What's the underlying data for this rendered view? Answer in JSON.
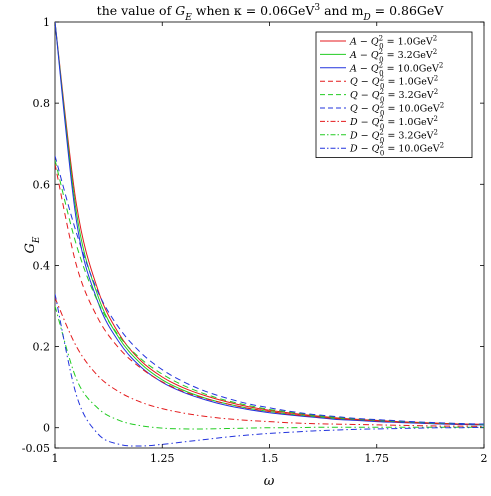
{
  "chart_data": {
    "type": "line",
    "title": "the value of G_E when κ = 0.06GeV³ and m_D = 0.86GeV",
    "title_parts": {
      "prefix": "the value of ",
      "symbol": "G",
      "symbol_sub": "E",
      "middle": " when κ = 0.06GeV",
      "sup3": "3",
      "suffix_pre": " and m",
      "mdsub": "D",
      "suffix": " = 0.86GeV"
    },
    "xlabel": "ω",
    "ylabel": "G",
    "ylabel_sub": "E",
    "xlim": [
      1,
      2
    ],
    "ylim": [
      -0.05,
      1
    ],
    "xticks": [
      1,
      1.25,
      1.5,
      1.75,
      2
    ],
    "xtick_labels": [
      "1",
      "1.25",
      "1.5",
      "1.75",
      "2"
    ],
    "yticks": [
      -0.05,
      0,
      0.2,
      0.4,
      0.6,
      0.8,
      1
    ],
    "ytick_labels": [
      "-0.05",
      "0",
      "0.2",
      "0.4",
      "0.6",
      "0.8",
      "1"
    ],
    "grid": false,
    "legend_position": "top-right",
    "x": [
      1.0,
      1.05,
      1.1,
      1.15,
      1.2,
      1.25,
      1.3,
      1.35,
      1.4,
      1.45,
      1.5,
      1.55,
      1.6,
      1.65,
      1.7,
      1.75,
      1.8,
      1.85,
      1.9,
      1.95,
      2.0
    ],
    "series": [
      {
        "name": "A − Q0² = 1.0GeV²",
        "prefix": "A − Q",
        "q2": "1.0",
        "color": "#e41a1c",
        "style": "solid",
        "values": [
          1.0,
          0.55,
          0.34,
          0.23,
          0.165,
          0.125,
          0.098,
          0.079,
          0.064,
          0.052,
          0.043,
          0.036,
          0.03,
          0.025,
          0.021,
          0.018,
          0.015,
          0.013,
          0.011,
          0.009,
          0.008
        ]
      },
      {
        "name": "A − Q0² = 3.2GeV²",
        "prefix": "A − Q",
        "q2": "3.2",
        "color": "#22cc22",
        "style": "solid",
        "values": [
          1.0,
          0.53,
          0.325,
          0.22,
          0.158,
          0.118,
          0.092,
          0.073,
          0.059,
          0.048,
          0.04,
          0.033,
          0.028,
          0.023,
          0.019,
          0.016,
          0.014,
          0.012,
          0.01,
          0.008,
          0.007
        ]
      },
      {
        "name": "A − Q0² = 10.0GeV²",
        "prefix": "A − Q",
        "q2": "10.0",
        "color": "#2233dd",
        "style": "solid",
        "values": [
          1.0,
          0.51,
          0.31,
          0.21,
          0.15,
          0.112,
          0.087,
          0.069,
          0.055,
          0.045,
          0.037,
          0.031,
          0.026,
          0.021,
          0.018,
          0.015,
          0.013,
          0.011,
          0.009,
          0.008,
          0.007
        ]
      },
      {
        "name": "Q − Q0² = 1.0GeV²",
        "prefix": "Q − Q",
        "q2": "1.0",
        "color": "#e41a1c",
        "style": "dashed",
        "values": [
          0.65,
          0.4,
          0.27,
          0.195,
          0.147,
          0.113,
          0.089,
          0.072,
          0.059,
          0.048,
          0.04,
          0.033,
          0.028,
          0.023,
          0.02,
          0.017,
          0.014,
          0.012,
          0.01,
          0.009,
          0.008
        ]
      },
      {
        "name": "Q − Q0² = 3.2GeV²",
        "prefix": "Q − Q",
        "q2": "3.2",
        "color": "#22cc22",
        "style": "dashed",
        "values": [
          0.66,
          0.45,
          0.31,
          0.225,
          0.17,
          0.132,
          0.104,
          0.083,
          0.067,
          0.055,
          0.045,
          0.038,
          0.031,
          0.026,
          0.022,
          0.019,
          0.016,
          0.013,
          0.011,
          0.01,
          0.008
        ]
      },
      {
        "name": "Q − Q0² = 10.0GeV²",
        "prefix": "Q − Q",
        "q2": "10.0",
        "color": "#2233dd",
        "style": "dashed",
        "values": [
          0.67,
          0.48,
          0.335,
          0.245,
          0.185,
          0.143,
          0.113,
          0.09,
          0.073,
          0.059,
          0.049,
          0.04,
          0.033,
          0.028,
          0.023,
          0.02,
          0.017,
          0.014,
          0.012,
          0.01,
          0.009
        ]
      },
      {
        "name": "D − Q0² = 1.0GeV²",
        "prefix": "D − Q",
        "q2": "1.0",
        "color": "#e41a1c",
        "style": "dashdot",
        "values": [
          0.32,
          0.2,
          0.128,
          0.088,
          0.063,
          0.047,
          0.036,
          0.028,
          0.022,
          0.018,
          0.015,
          0.012,
          0.01,
          0.009,
          0.008,
          0.007,
          0.006,
          0.005,
          0.004,
          0.004,
          0.003
        ]
      },
      {
        "name": "D − Q0² = 3.2GeV²",
        "prefix": "D − Q",
        "q2": "3.2",
        "color": "#22cc22",
        "style": "dashdot",
        "values": [
          0.3,
          0.12,
          0.048,
          0.018,
          0.005,
          -0.001,
          -0.003,
          -0.003,
          -0.002,
          -0.001,
          0.0,
          0.0,
          0.001,
          0.001,
          0.001,
          0.001,
          0.001,
          0.001,
          0.001,
          0.001,
          0.001
        ]
      },
      {
        "name": "D − Q0² = 10.0GeV²",
        "prefix": "D − Q",
        "q2": "10.0",
        "color": "#2233dd",
        "style": "dashdot",
        "values": [
          0.33,
          0.08,
          -0.015,
          -0.041,
          -0.045,
          -0.041,
          -0.035,
          -0.029,
          -0.023,
          -0.018,
          -0.014,
          -0.011,
          -0.008,
          -0.006,
          -0.004,
          -0.003,
          -0.002,
          -0.001,
          0.0,
          0.0,
          0.001
        ]
      }
    ]
  }
}
